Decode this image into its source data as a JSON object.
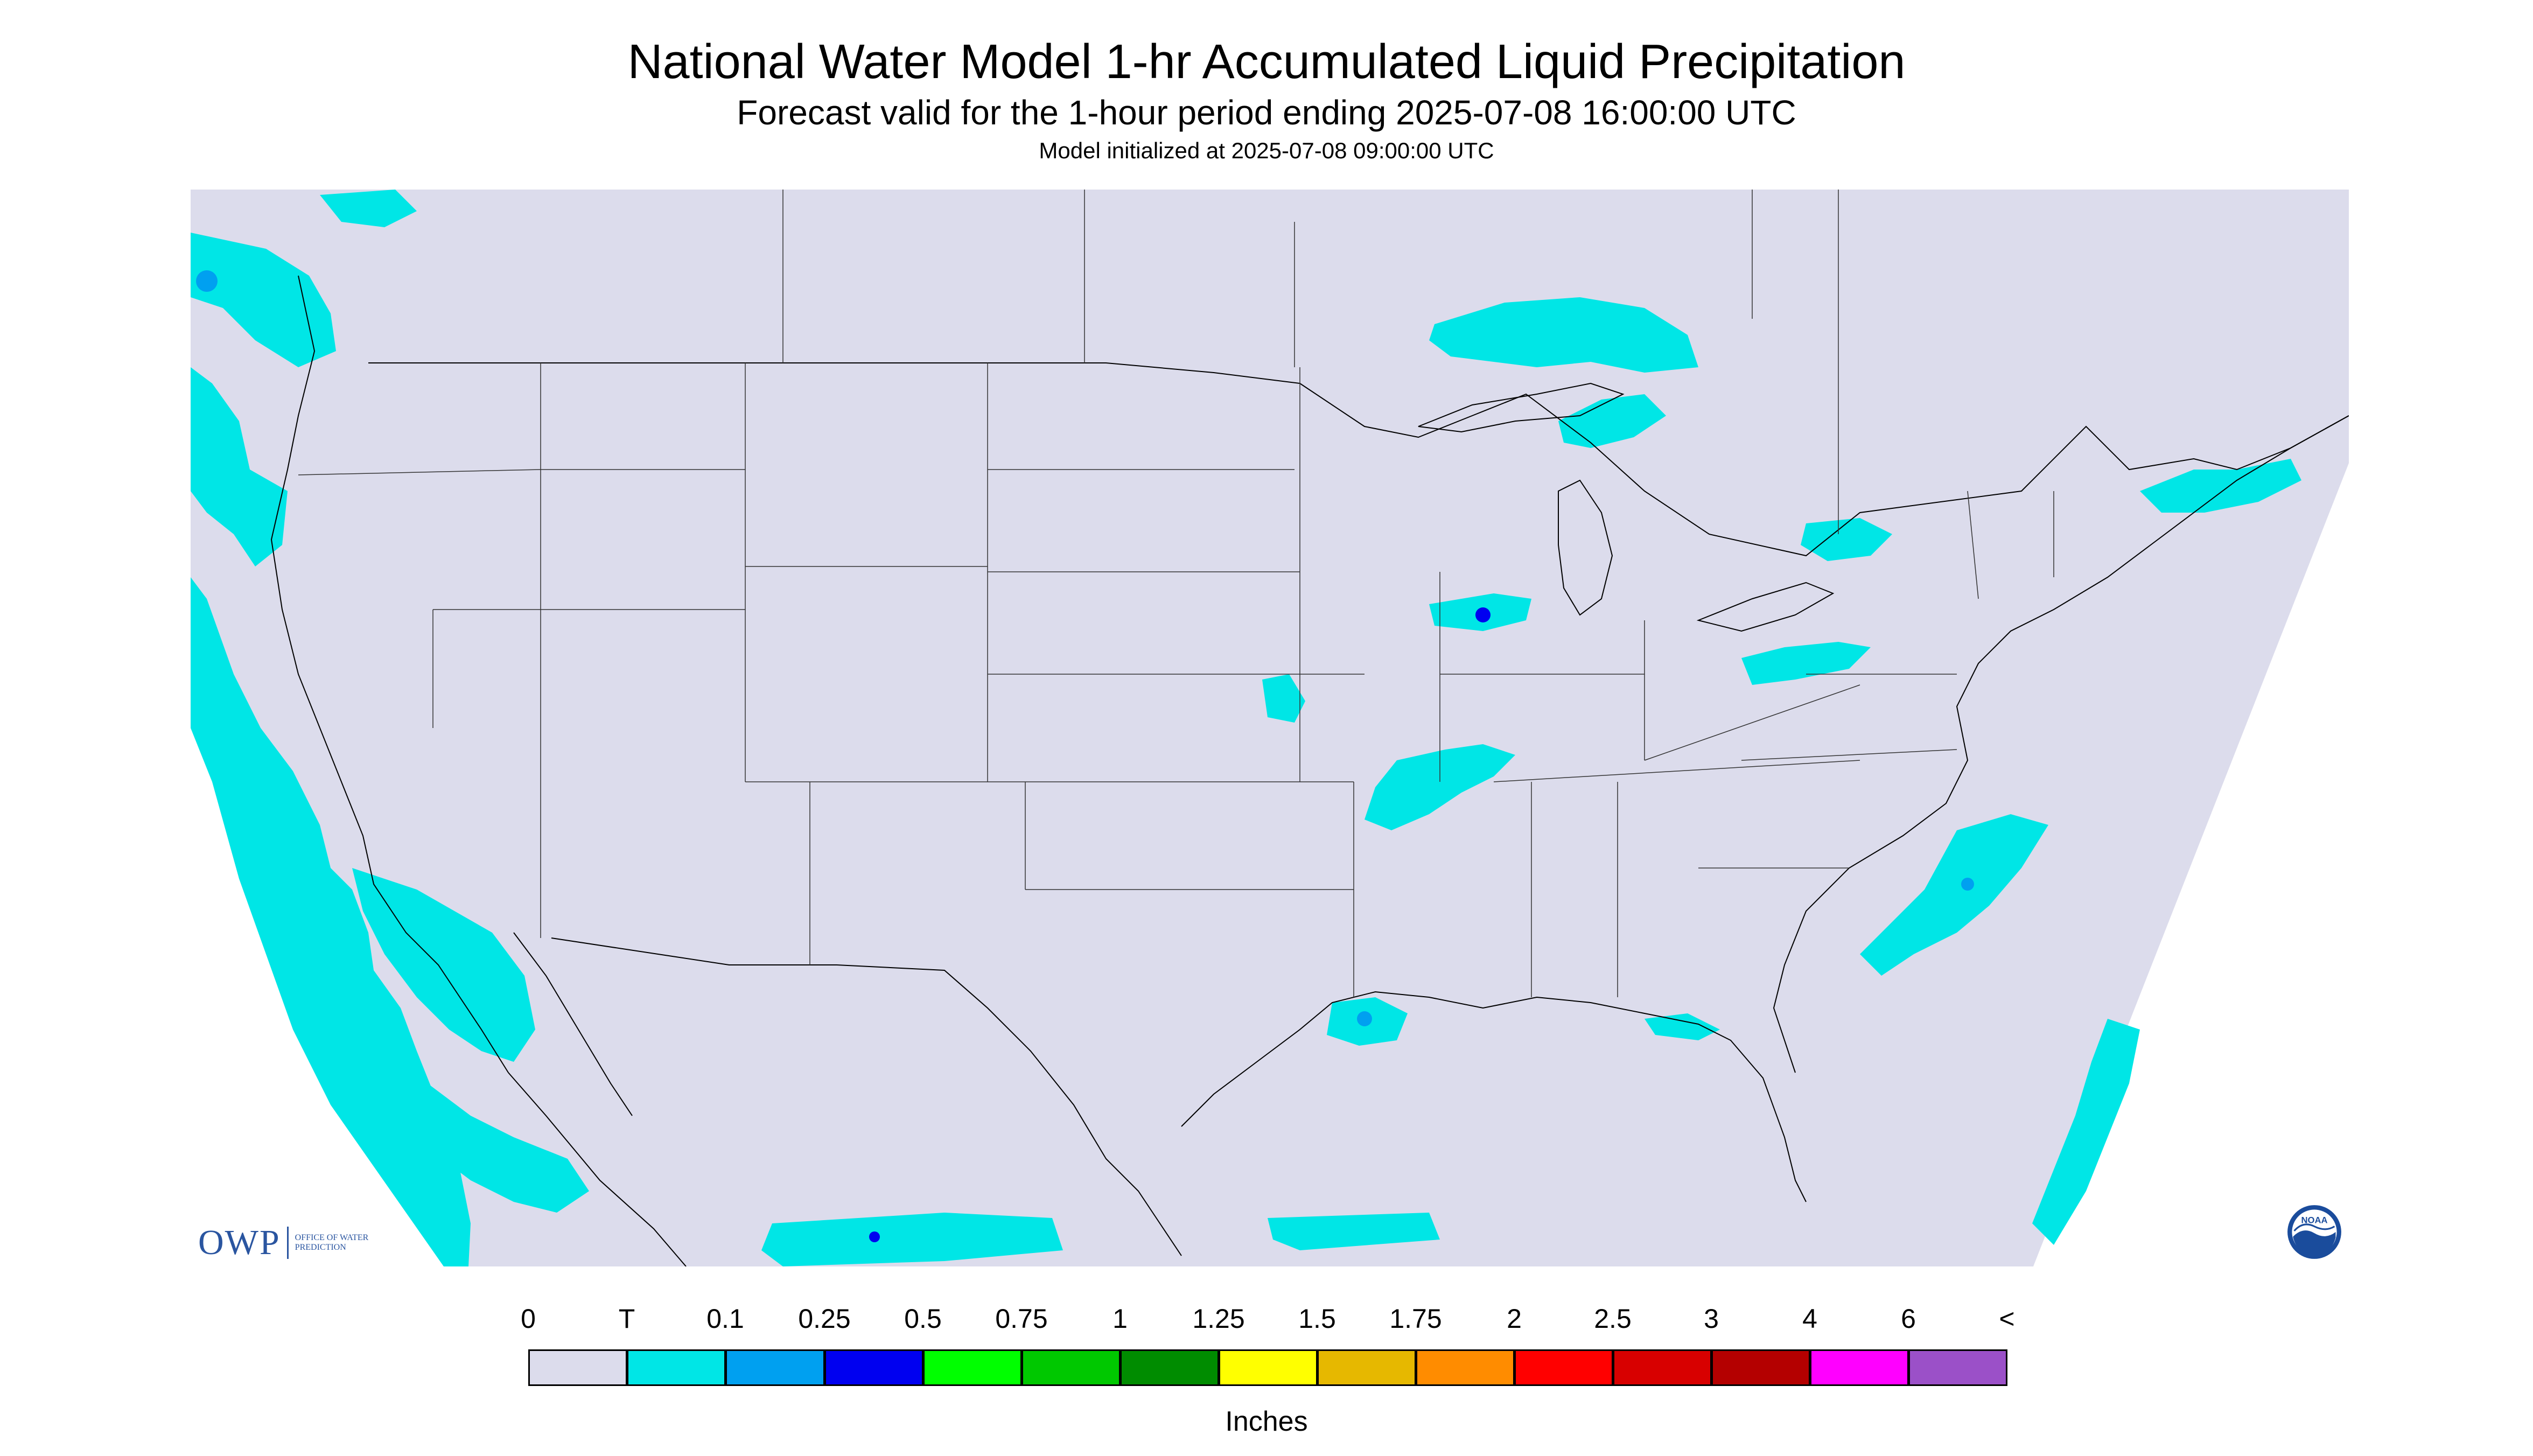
{
  "title": "National Water Model 1-hr Accumulated Liquid Precipitation",
  "subtitle": "Forecast valid for the 1-hour period ending 2025-07-08 16:00:00 UTC",
  "init_line": "Model initialized at 2025-07-08 09:00:00 UTC",
  "colors": {
    "background": "#dcdcec",
    "trace": "#00e6e6",
    "c_0_1": "#00a0f0",
    "c_0_25": "#0000f0",
    "c_0_5": "#00ff00",
    "c_0_75": "#00c800",
    "c_1": "#008c00",
    "c_1_25": "#ffff00",
    "c_1_5": "#e6b800",
    "c_1_75": "#ff8c00",
    "c_2": "#ff0000",
    "c_2_5": "#d80000",
    "c_3": "#b40000",
    "c_4": "#ff00ff",
    "c_6": "#9b50c8"
  },
  "legend": {
    "tick_labels": [
      "0",
      "T",
      "0.1",
      "0.25",
      "0.5",
      "0.75",
      "1",
      "1.25",
      "1.5",
      "1.75",
      "2",
      "2.5",
      "3",
      "4",
      "6",
      "<"
    ],
    "bin_colors": [
      "#dcdcec",
      "#00e6e6",
      "#00a0f0",
      "#0000f0",
      "#00ff00",
      "#00c800",
      "#008c00",
      "#ffff00",
      "#e6b800",
      "#ff8c00",
      "#ff0000",
      "#d80000",
      "#b40000",
      "#ff00ff",
      "#9b50c8"
    ],
    "units": "Inches"
  },
  "logos": {
    "owp_mark": "OWP",
    "owp_text": "OFFICE OF WATER PREDICTION",
    "noaa_text": "NOAA"
  }
}
